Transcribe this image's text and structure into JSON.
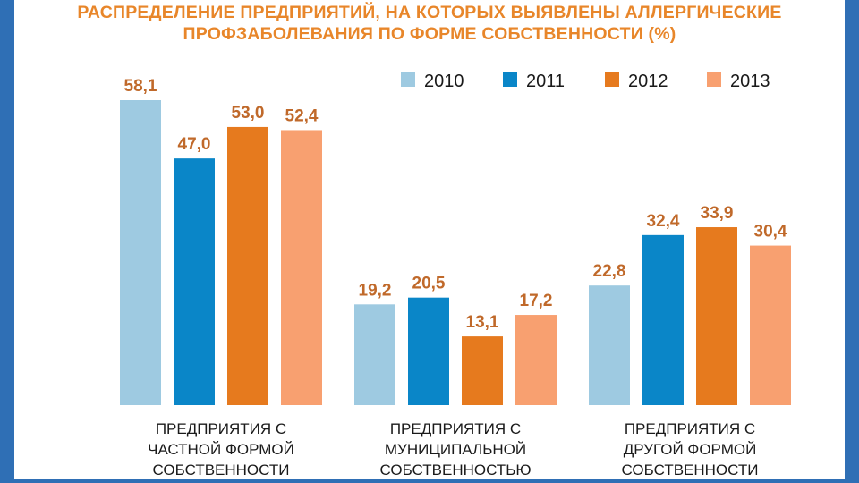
{
  "colors": {
    "frame": "#2f6fb5",
    "title": "#e8862a",
    "label": "#c0692a",
    "series": [
      "#9ecae1",
      "#0a86c8",
      "#e67a1e",
      "#f8a070"
    ]
  },
  "chart_data": {
    "type": "bar",
    "title": "РАСПРЕДЕЛЕНИЕ ПРЕДПРИЯТИЙ, НА КОТОРЫХ ВЫЯВЛЕНЫ АЛЛЕРГИЧЕСКИЕ ПРОФЗАБОЛЕВАНИЯ ПО ФОРМЕ СОБСТВЕННОСТИ (%)",
    "title_lines": [
      "РАСПРЕДЕЛЕНИЕ ПРЕДПРИЯТИЙ, НА КОТОРЫХ ВЫЯВЛЕНЫ АЛЛЕРГИЧЕСКИЕ",
      "ПРОФЗАБОЛЕВАНИЯ ПО ФОРМЕ СОБСТВЕННОСТИ (%)"
    ],
    "categories": [
      [
        "ПРЕДПРИЯТИЯ С",
        "ЧАСТНОЙ ФОРМОЙ",
        "СОБСТВЕННОСТИ"
      ],
      [
        "ПРЕДПРИЯТИЯ С",
        "МУНИЦИПАЛЬНОЙ",
        "СОБСТВЕННОСТЬЮ"
      ],
      [
        "ПРЕДПРИЯТИЯ С",
        "ДРУГОЙ ФОРМОЙ",
        "СОБСТВЕННОСТИ"
      ]
    ],
    "series": [
      {
        "name": "2010",
        "values": [
          58.1,
          19.2,
          22.8
        ],
        "labels": [
          "58,1",
          "19,2",
          "22,8"
        ]
      },
      {
        "name": "2011",
        "values": [
          47.0,
          20.5,
          32.4
        ],
        "labels": [
          "47,0",
          "20,5",
          "32,4"
        ]
      },
      {
        "name": "2012",
        "values": [
          53.0,
          13.1,
          33.9
        ],
        "labels": [
          "53,0",
          "13,1",
          "33,9"
        ]
      },
      {
        "name": "2013",
        "values": [
          52.4,
          17.2,
          30.4
        ],
        "labels": [
          "52,4",
          "17,2",
          "30,4"
        ]
      }
    ],
    "ylim": [
      0,
      58.1
    ],
    "legend": "top-right",
    "grid": false
  }
}
